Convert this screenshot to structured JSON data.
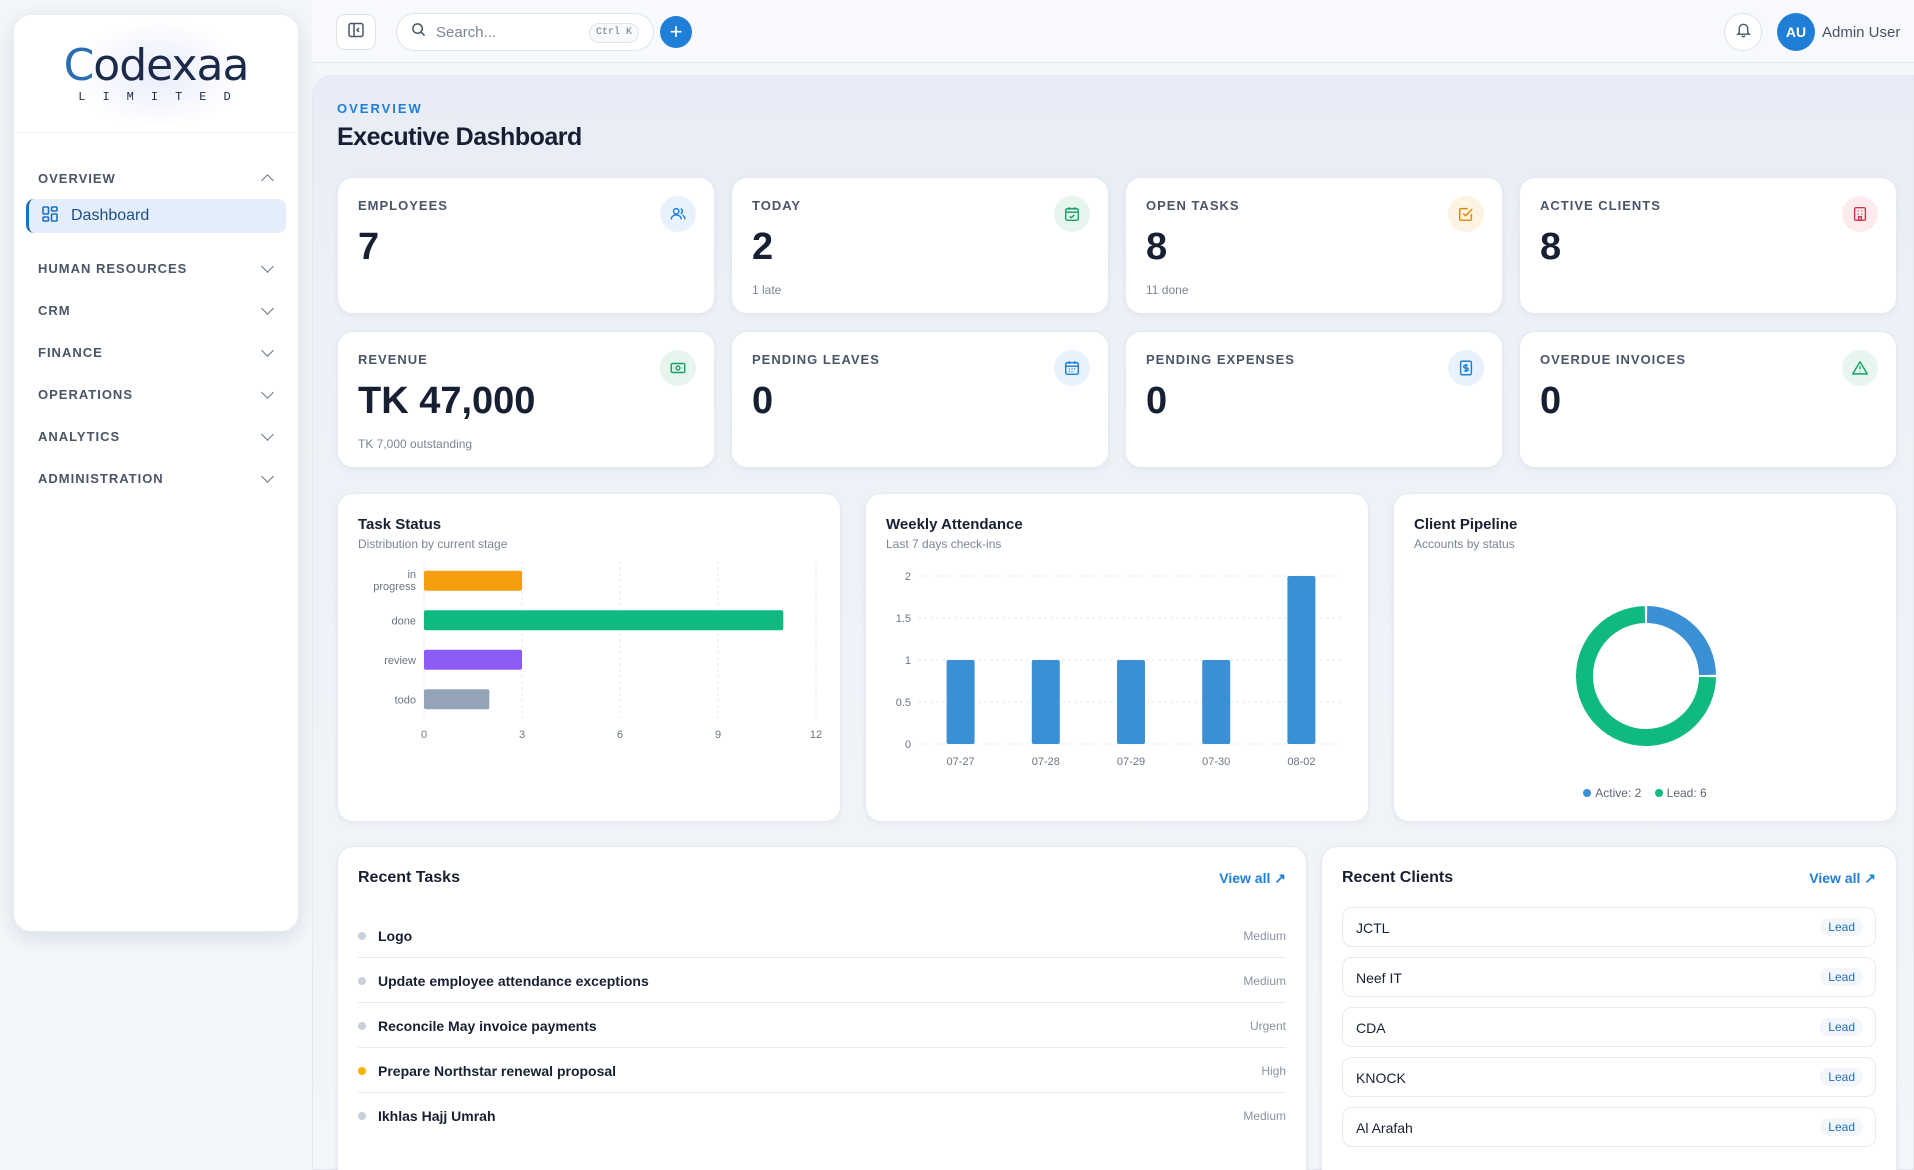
{
  "brand": {
    "logo_text": "Codexaa",
    "logo_sub": "LIMITED"
  },
  "sidebar": {
    "sections": [
      {
        "label": "OVERVIEW",
        "expanded": true,
        "items": [
          {
            "label": "Dashboard",
            "active": true
          }
        ]
      },
      {
        "label": "HUMAN RESOURCES",
        "expanded": false
      },
      {
        "label": "CRM",
        "expanded": false
      },
      {
        "label": "FINANCE",
        "expanded": false
      },
      {
        "label": "OPERATIONS",
        "expanded": false
      },
      {
        "label": "ANALYTICS",
        "expanded": false
      },
      {
        "label": "ADMINISTRATION",
        "expanded": false
      }
    ]
  },
  "topbar": {
    "search_placeholder": "Search...",
    "shortcut": "Ctrl K",
    "user_initials": "AU",
    "user_name": "Admin User"
  },
  "page": {
    "eyebrow": "OVERVIEW",
    "title": "Executive Dashboard"
  },
  "stats": [
    {
      "label": "EMPLOYEES",
      "value": "7",
      "sub": "",
      "icon": "users-icon",
      "color": "#1f7fd6"
    },
    {
      "label": "TODAY",
      "value": "2",
      "sub": "1 late",
      "icon": "calendar-check-icon",
      "color": "#16a36a"
    },
    {
      "label": "OPEN TASKS",
      "value": "8",
      "sub": "11 done",
      "icon": "square-check-icon",
      "color": "#e08a0b"
    },
    {
      "label": "ACTIVE CLIENTS",
      "value": "8",
      "sub": "",
      "icon": "building-icon",
      "color": "#d6334a"
    },
    {
      "label": "REVENUE",
      "value": "TK 47,000",
      "sub": "TK 7,000 outstanding",
      "icon": "banknote-icon",
      "color": "#16a36a"
    },
    {
      "label": "PENDING LEAVES",
      "value": "0",
      "sub": "",
      "icon": "calendar-icon",
      "color": "#1f7fd6"
    },
    {
      "label": "PENDING EXPENSES",
      "value": "0",
      "sub": "",
      "icon": "receipt-icon",
      "color": "#1f7fd6"
    },
    {
      "label": "OVERDUE INVOICES",
      "value": "0",
      "sub": "",
      "icon": "alert-triangle-icon",
      "color": "#16a36a"
    }
  ],
  "charts": {
    "task_status": {
      "title": "Task Status",
      "subtitle": "Distribution by current stage"
    },
    "weekly_attendance": {
      "title": "Weekly Attendance",
      "subtitle": "Last 7 days check-ins"
    },
    "client_pipeline": {
      "title": "Client Pipeline",
      "subtitle": "Accounts by status",
      "legend": [
        "Active: 2",
        "Lead: 6"
      ]
    }
  },
  "chart_data": [
    {
      "type": "bar",
      "orientation": "horizontal",
      "categories": [
        "in progress",
        "done",
        "review",
        "todo"
      ],
      "values": [
        3,
        11,
        3,
        2
      ],
      "colors": [
        "#f59e0b",
        "#10b981",
        "#8b5cf6",
        "#94a3b8"
      ],
      "xlim": [
        0,
        12
      ],
      "xticks": [
        "0",
        "3",
        "6",
        "9",
        "12"
      ],
      "grid": true
    },
    {
      "type": "bar",
      "categories": [
        "07-27",
        "07-28",
        "07-29",
        "07-30",
        "08-02"
      ],
      "values": [
        1,
        1,
        1,
        1,
        2
      ],
      "color": "#3b8fd4",
      "ylim": [
        0,
        2
      ],
      "yticks": [
        "0",
        "0.5",
        "1",
        "1.5",
        "2"
      ],
      "grid": true
    },
    {
      "type": "pie",
      "donut": true,
      "labels": [
        "Active",
        "Lead"
      ],
      "values": [
        2,
        6
      ],
      "colors": [
        "#3b8fd4",
        "#10b981"
      ],
      "legend_position": "bottom"
    }
  ],
  "recent_tasks": {
    "title": "Recent Tasks",
    "view_all": "View all",
    "items": [
      {
        "name": "Logo",
        "priority": "Medium",
        "dot": "#c8d0da"
      },
      {
        "name": "Update employee attendance exceptions",
        "priority": "Medium",
        "dot": "#c8d0da"
      },
      {
        "name": "Reconcile May invoice payments",
        "priority": "Urgent",
        "dot": "#c8d0da"
      },
      {
        "name": "Prepare Northstar renewal proposal",
        "priority": "High",
        "dot": "#f5b400"
      },
      {
        "name": "Ikhlas Hajj Umrah",
        "priority": "Medium",
        "dot": "#c8d0da"
      }
    ]
  },
  "recent_clients": {
    "title": "Recent Clients",
    "view_all": "View all",
    "items": [
      {
        "name": "JCTL",
        "status": "Lead"
      },
      {
        "name": "Neef IT",
        "status": "Lead"
      },
      {
        "name": "CDA",
        "status": "Lead"
      },
      {
        "name": "KNOCK",
        "status": "Lead"
      },
      {
        "name": "Al Arafah",
        "status": "Lead"
      }
    ]
  }
}
